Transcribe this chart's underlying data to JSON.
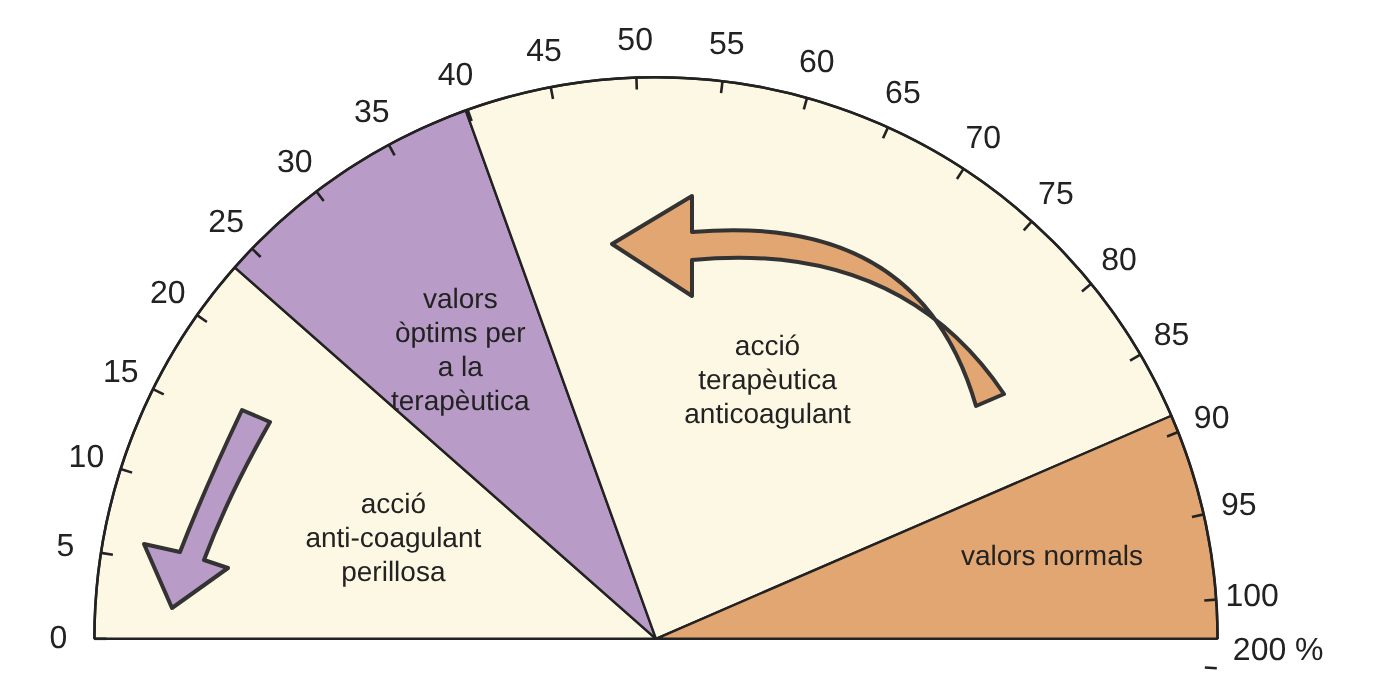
{
  "chart_data": {
    "type": "pie",
    "categories": [
      "acció anti-coagulant perillosa",
      "valors òptims per a la terapèutica",
      "acció terapèutica anticoagulant",
      "valors normals"
    ],
    "values": [
      23,
      16,
      48,
      13
    ],
    "colors": [
      "#fdf8e4",
      "#b89bc6",
      "#fdf8e4",
      "#e2a672"
    ],
    "annotations": [
      "0",
      "5",
      "10",
      "15",
      "20",
      "25",
      "30",
      "35",
      "40",
      "45",
      "50",
      "55",
      "60",
      "65",
      "70",
      "75",
      "80",
      "85",
      "90",
      "95",
      "100",
      "200 %"
    ],
    "legend": false
  }
}
